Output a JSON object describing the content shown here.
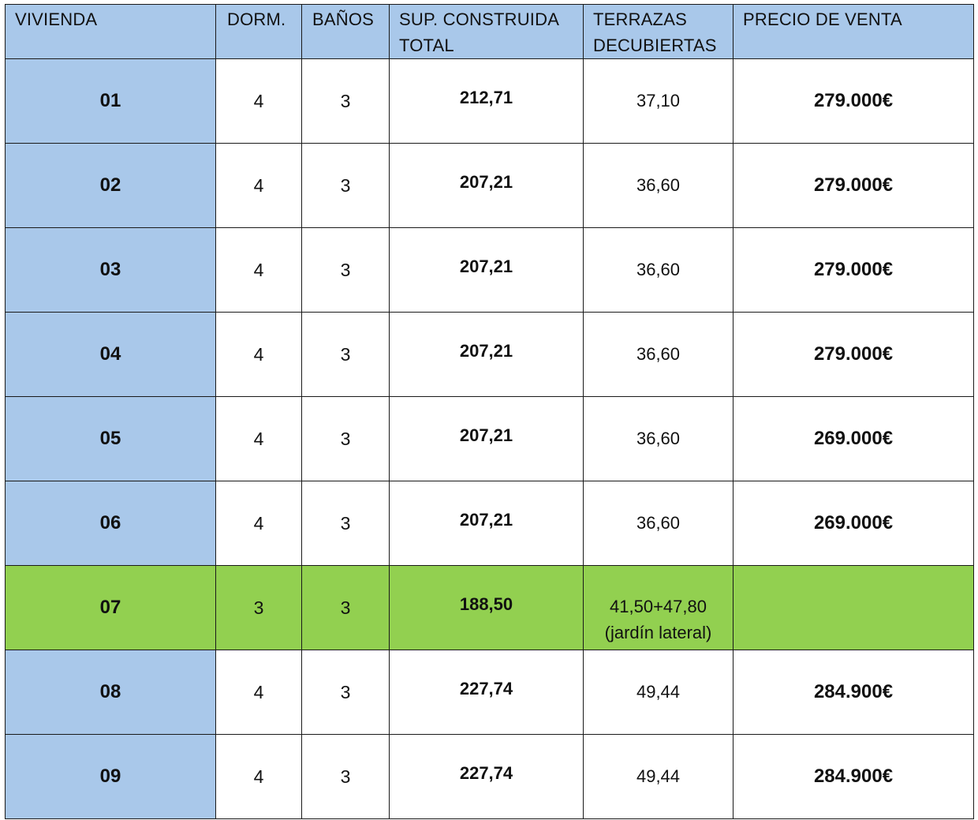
{
  "table": {
    "headers": {
      "vivienda": "VIVIENDA",
      "dorm": "DORM.",
      "banos": "BAÑOS",
      "sup_line1": "SUP. CONSTRUIDA",
      "sup_line2": "TOTAL",
      "terr_line1": "TERRAZAS",
      "terr_line2": "DECUBIERTAS",
      "precio": "PRECIO DE VENTA"
    },
    "rows": [
      {
        "vivienda": "01",
        "dorm": "4",
        "banos": "3",
        "sup": "212,71",
        "terrazas": "37,10",
        "terrazas_note": "",
        "precio": "279.000€"
      },
      {
        "vivienda": "02",
        "dorm": "4",
        "banos": "3",
        "sup": "207,21",
        "terrazas": "36,60",
        "terrazas_note": "",
        "precio": "279.000€"
      },
      {
        "vivienda": "03",
        "dorm": "4",
        "banos": "3",
        "sup": "207,21",
        "terrazas": "36,60",
        "terrazas_note": "",
        "precio": "279.000€"
      },
      {
        "vivienda": "04",
        "dorm": "4",
        "banos": "3",
        "sup": "207,21",
        "terrazas": "36,60",
        "terrazas_note": "",
        "precio": "279.000€"
      },
      {
        "vivienda": "05",
        "dorm": "4",
        "banos": "3",
        "sup": "207,21",
        "terrazas": "36,60",
        "terrazas_note": "",
        "precio": "269.000€"
      },
      {
        "vivienda": "06",
        "dorm": "4",
        "banos": "3",
        "sup": "207,21",
        "terrazas": "36,60",
        "terrazas_note": "",
        "precio": "269.000€"
      },
      {
        "vivienda": "07",
        "dorm": "3",
        "banos": "3",
        "sup": "188,50",
        "terrazas": "41,50+47,80",
        "terrazas_note": "(jardín lateral)",
        "precio": "",
        "highlight": true
      },
      {
        "vivienda": "08",
        "dorm": "4",
        "banos": "3",
        "sup": "227,74",
        "terrazas": "49,44",
        "terrazas_note": "",
        "precio": "284.900€"
      },
      {
        "vivienda": "09",
        "dorm": "4",
        "banos": "3",
        "sup": "227,74",
        "terrazas": "49,44",
        "terrazas_note": "",
        "precio": "284.900€"
      }
    ]
  },
  "colors": {
    "header_bg": "#a9c8ea",
    "vivienda_bg": "#a9c8ea",
    "highlight_row_bg": "#92d050",
    "border": "#1a1a1a"
  }
}
